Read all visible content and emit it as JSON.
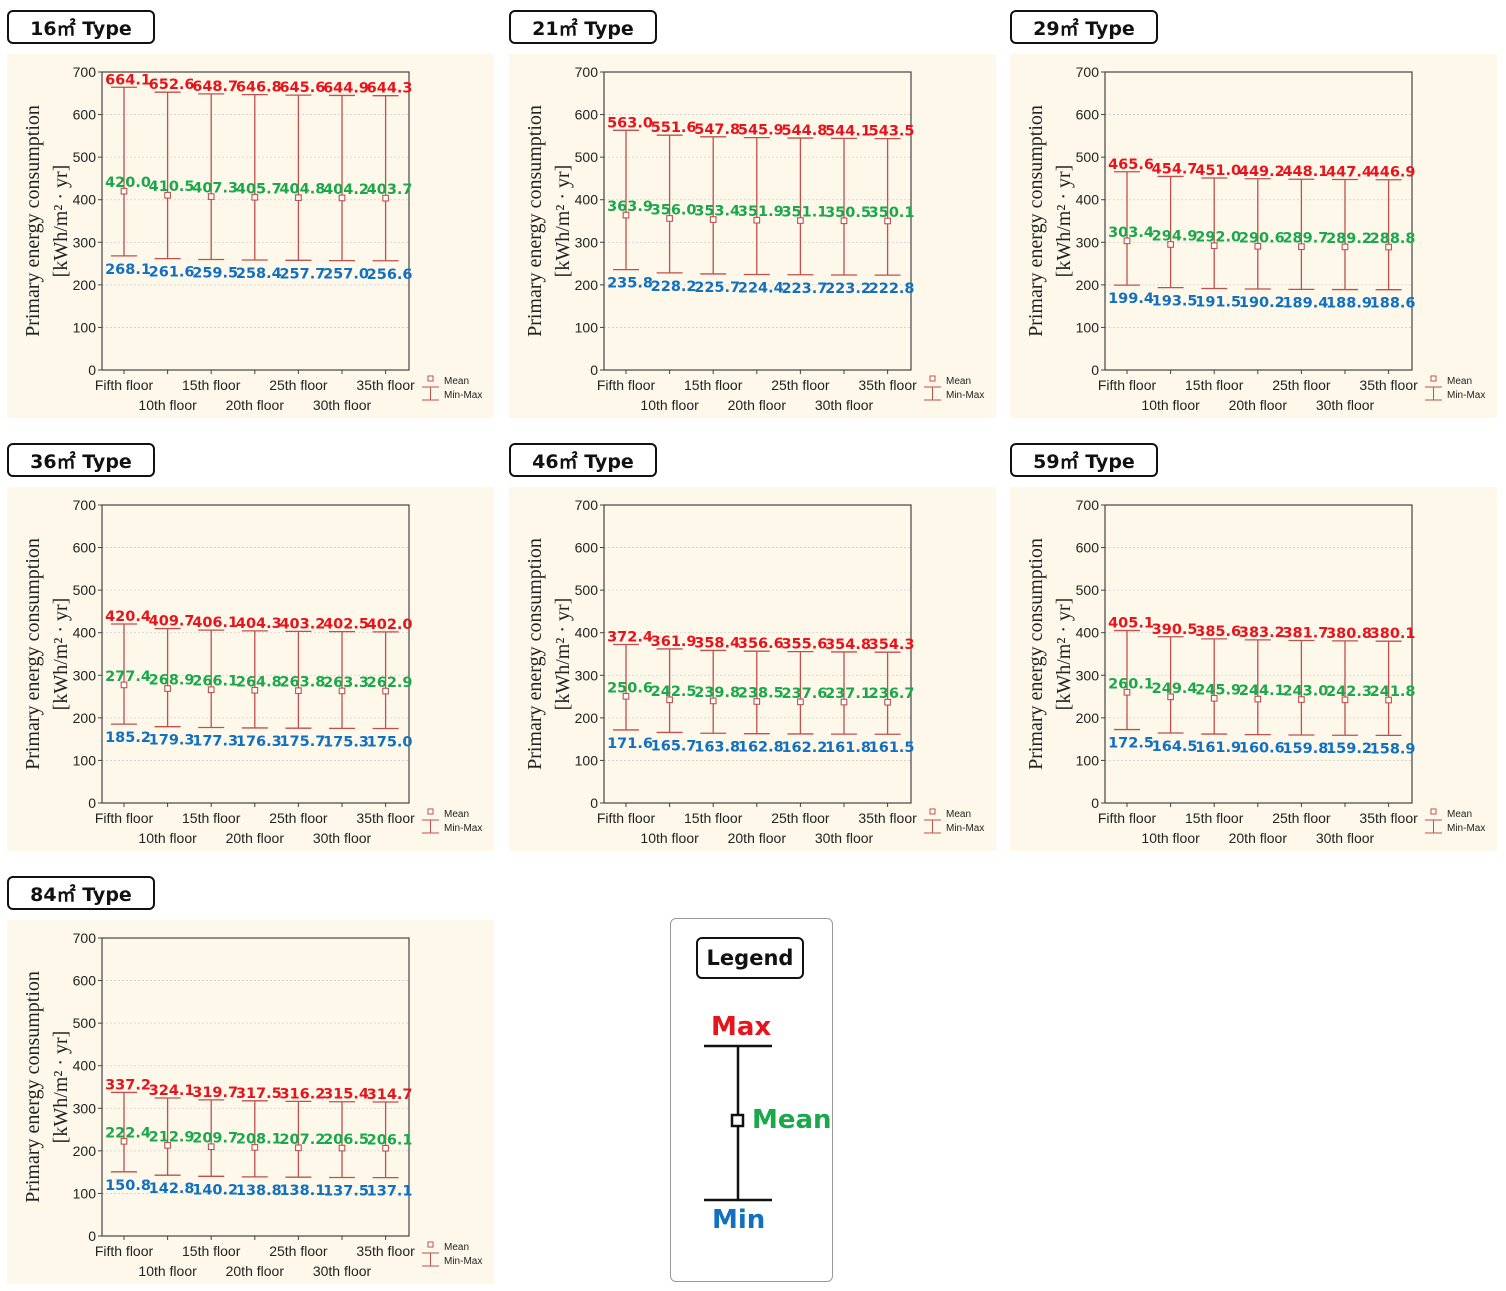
{
  "colors": {
    "max": "#e8141c",
    "mean": "#1aa84b",
    "min": "#1170c0",
    "whisker": "#c0504d",
    "panel_bg": "#fdf8ea",
    "frame": "#444444"
  },
  "legend": {
    "title": "Legend",
    "max": "Max",
    "mean": "Mean",
    "min": "Min",
    "small_mean": "Mean",
    "small_minmax": "Min-Max"
  },
  "chart_data": [
    {
      "type": "box",
      "title": "16㎡ Type",
      "ylabel_line1": "Primary energy consumption",
      "ylabel_line2": "[kWh/m² · yr]",
      "ylim": [
        0,
        700
      ],
      "yticks": [
        "0",
        "100",
        "200",
        "300",
        "400",
        "500",
        "600",
        "700"
      ],
      "categories": [
        "Fifth floor",
        "10th floor",
        "15th floor",
        "20th floor",
        "25th floor",
        "30th floor",
        "35th floor"
      ],
      "max": [
        664.1,
        652.6,
        648.7,
        646.8,
        645.6,
        644.9,
        644.3
      ],
      "mean": [
        420.0,
        410.5,
        407.3,
        405.7,
        404.8,
        404.2,
        403.7
      ],
      "min": [
        268.1,
        261.6,
        259.5,
        258.4,
        257.7,
        257.0,
        256.6
      ],
      "max_labels": [
        "664.1",
        "652.6",
        "648.7",
        "646.8",
        "645.6",
        "644.9",
        "644.3"
      ],
      "mean_labels": [
        "420.0",
        "410.5",
        "407.3",
        "405.7",
        "404.8",
        "404.2",
        "403.7"
      ],
      "min_labels": [
        "268.1",
        "261.6",
        "259.5",
        "258.4",
        "257.7",
        "257.0",
        "256.6"
      ]
    },
    {
      "type": "box",
      "title": "21㎡ Type",
      "ylabel_line1": "Primary energy consumption",
      "ylabel_line2": "[kWh/m² · yr]",
      "ylim": [
        0,
        700
      ],
      "yticks": [
        "0",
        "100",
        "200",
        "300",
        "400",
        "500",
        "600",
        "700"
      ],
      "categories": [
        "Fifth floor",
        "10th floor",
        "15th floor",
        "20th floor",
        "25th floor",
        "30th floor",
        "35th floor"
      ],
      "max": [
        563.0,
        551.6,
        547.8,
        545.9,
        544.8,
        544.1,
        543.5
      ],
      "mean": [
        363.9,
        356.0,
        353.4,
        351.9,
        351.1,
        350.5,
        350.1
      ],
      "min": [
        235.8,
        228.2,
        225.7,
        224.4,
        223.7,
        223.2,
        222.8
      ],
      "max_labels": [
        "563.0",
        "551.6",
        "547.8",
        "545.9",
        "544.8",
        "544.1",
        "543.5"
      ],
      "mean_labels": [
        "363.9",
        "356.0",
        "353.4",
        "351.9",
        "351.1",
        "350.5",
        "350.1"
      ],
      "min_labels": [
        "235.8",
        "228.2",
        "225.7",
        "224.4",
        "223.7",
        "223.2",
        "222.8"
      ]
    },
    {
      "type": "box",
      "title": "29㎡ Type",
      "ylabel_line1": "Primary energy consumption",
      "ylabel_line2": "[kWh/m² · yr]",
      "ylim": [
        0,
        700
      ],
      "yticks": [
        "0",
        "100",
        "200",
        "300",
        "400",
        "500",
        "600",
        "700"
      ],
      "categories": [
        "Fifth floor",
        "10th floor",
        "15th floor",
        "20th floor",
        "25th floor",
        "30th floor",
        "35th floor"
      ],
      "max": [
        465.6,
        454.7,
        451.0,
        449.2,
        448.1,
        447.4,
        446.9
      ],
      "mean": [
        303.4,
        294.9,
        292.0,
        290.6,
        289.7,
        289.2,
        288.8
      ],
      "min": [
        199.4,
        193.5,
        191.5,
        190.2,
        189.4,
        188.9,
        188.6
      ],
      "max_labels": [
        "465.6",
        "454.7",
        "451.0",
        "449.2",
        "448.1",
        "447.4",
        "446.9"
      ],
      "mean_labels": [
        "303.4",
        "294.9",
        "292.0",
        "290.6",
        "289.7",
        "289.2",
        "288.8"
      ],
      "min_labels": [
        "199.4",
        "193.5",
        "191.5",
        "190.2",
        "189.4",
        "188.9",
        "188.6"
      ]
    },
    {
      "type": "box",
      "title": "36㎡ Type",
      "ylabel_line1": "Primary energy consumption",
      "ylabel_line2": "[kWh/m² · yr]",
      "ylim": [
        0,
        700
      ],
      "yticks": [
        "0",
        "100",
        "200",
        "300",
        "400",
        "500",
        "600",
        "700"
      ],
      "categories": [
        "Fifth floor",
        "10th floor",
        "15th floor",
        "20th floor",
        "25th floor",
        "30th floor",
        "35th floor"
      ],
      "max": [
        420.4,
        409.7,
        406.1,
        404.3,
        403.2,
        402.5,
        402.0
      ],
      "mean": [
        277.4,
        268.9,
        266.1,
        264.8,
        263.8,
        263.3,
        262.9
      ],
      "min": [
        185.2,
        179.3,
        177.3,
        176.3,
        175.7,
        175.3,
        175.0
      ],
      "max_labels": [
        "420.4",
        "409.7",
        "406.1",
        "404.3",
        "403.2",
        "402.5",
        "402.0"
      ],
      "mean_labels": [
        "277.4",
        "268.9",
        "266.1",
        "264.8",
        "263.8",
        "263.3",
        "262.9"
      ],
      "min_labels": [
        "185.2",
        "179.3",
        "177.3",
        "176.3",
        "175.7",
        "175.3",
        "175.0"
      ]
    },
    {
      "type": "box",
      "title": "46㎡ Type",
      "ylabel_line1": "Primary energy consumption",
      "ylabel_line2": "[kWh/m² · yr]",
      "ylim": [
        0,
        700
      ],
      "yticks": [
        "0",
        "100",
        "200",
        "300",
        "400",
        "500",
        "600",
        "700"
      ],
      "categories": [
        "Fifth floor",
        "10th floor",
        "15th floor",
        "20th floor",
        "25th floor",
        "30th floor",
        "35th floor"
      ],
      "max": [
        372.4,
        361.9,
        358.4,
        356.6,
        355.6,
        354.8,
        354.3
      ],
      "mean": [
        250.6,
        242.5,
        239.8,
        238.5,
        237.6,
        237.1,
        236.7
      ],
      "min": [
        171.6,
        165.7,
        163.8,
        162.8,
        162.2,
        161.8,
        161.5
      ],
      "max_labels": [
        "372.4",
        "361.9",
        "358.4",
        "356.6",
        "355.6",
        "354.8",
        "354.3"
      ],
      "mean_labels": [
        "250.6",
        "242.5",
        "239.8",
        "238.5",
        "237.6",
        "237.1",
        "236.7"
      ],
      "min_labels": [
        "171.6",
        "165.7",
        "163.8",
        "162.8",
        "162.2",
        "161.8",
        "161.5"
      ]
    },
    {
      "type": "box",
      "title": "59㎡ Type",
      "ylabel_line1": "Primary energy consumption",
      "ylabel_line2": "[kWh/m² · yr]",
      "ylim": [
        0,
        700
      ],
      "yticks": [
        "0",
        "100",
        "200",
        "300",
        "400",
        "500",
        "600",
        "700"
      ],
      "categories": [
        "Fifth floor",
        "10th floor",
        "15th floor",
        "20th floor",
        "25th floor",
        "30th floor",
        "35th floor"
      ],
      "max": [
        405.1,
        390.5,
        385.6,
        383.2,
        381.7,
        380.8,
        380.1
      ],
      "mean": [
        260.1,
        249.4,
        245.9,
        244.1,
        243.0,
        242.3,
        241.8
      ],
      "min": [
        172.5,
        164.5,
        161.9,
        160.6,
        159.8,
        159.2,
        158.9
      ],
      "max_labels": [
        "405.1",
        "390.5",
        "385.6",
        "383.2",
        "381.7",
        "380.8",
        "380.1"
      ],
      "mean_labels": [
        "260.1",
        "249.4",
        "245.9",
        "244.1",
        "243.0",
        "242.3",
        "241.8"
      ],
      "min_labels": [
        "172.5",
        "164.5",
        "161.9",
        "160.6",
        "159.8",
        "159.2",
        "158.9"
      ]
    },
    {
      "type": "box",
      "title": "84㎡ Type",
      "ylabel_line1": "Primary energy consumption",
      "ylabel_line2": "[kWh/m² · yr]",
      "ylim": [
        0,
        700
      ],
      "yticks": [
        "0",
        "100",
        "200",
        "300",
        "400",
        "500",
        "600",
        "700"
      ],
      "categories": [
        "Fifth floor",
        "10th floor",
        "15th floor",
        "20th floor",
        "25th floor",
        "30th floor",
        "35th floor"
      ],
      "max": [
        337.2,
        324.1,
        319.7,
        317.5,
        316.2,
        315.4,
        314.7
      ],
      "mean": [
        222.4,
        212.9,
        209.7,
        208.1,
        207.2,
        206.5,
        206.1
      ],
      "min": [
        150.8,
        142.8,
        140.2,
        138.8,
        138.1,
        137.5,
        137.1
      ],
      "max_labels": [
        "337.2",
        "324.1",
        "319.7",
        "317.5",
        "316.2",
        "315.4",
        "314.7"
      ],
      "mean_labels": [
        "222.4",
        "212.9",
        "209.7",
        "208.1",
        "207.2",
        "206.5",
        "206.1"
      ],
      "min_labels": [
        "150.8",
        "142.8",
        "140.2",
        "138.8",
        "138.1",
        "137.5",
        "137.1"
      ]
    }
  ]
}
